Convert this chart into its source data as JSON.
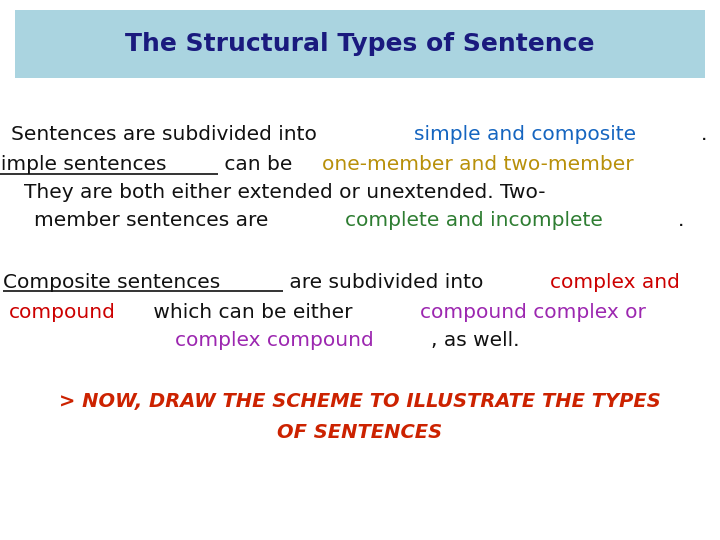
{
  "title": "The Structural Types of Sentence",
  "title_color": "#1a1a7e",
  "title_bg_color": "#aad4e0",
  "bg_color": "#ffffff",
  "fontsize": 14.5,
  "para3_color": "#cc2200",
  "para3_line1": "> NOW, DRAW THE SCHEME TO ILLUSTRATE THE TYPES",
  "para3_line2": "OF SENTENCES",
  "para1": [
    [
      {
        "text": "Sentences are subdivided into ",
        "color": "#111111",
        "underline": false
      },
      {
        "text": "simple and composite",
        "color": "#1565c0",
        "underline": false
      },
      {
        "text": ".",
        "color": "#111111",
        "underline": false
      }
    ],
    [
      {
        "text": "Simple sentences",
        "color": "#111111",
        "underline": true
      },
      {
        "text": " can be ",
        "color": "#111111",
        "underline": false
      },
      {
        "text": "one-member and two-member",
        "color": "#b8900a",
        "underline": false
      },
      {
        "text": ".",
        "color": "#111111",
        "underline": false
      }
    ],
    [
      {
        "text": "They are both either extended or unextended. Two-",
        "color": "#111111",
        "underline": false
      }
    ],
    [
      {
        "text": "member sentences are ",
        "color": "#111111",
        "underline": false
      },
      {
        "text": "complete and incomplete",
        "color": "#2e7d32",
        "underline": false
      },
      {
        "text": ".",
        "color": "#111111",
        "underline": false
      }
    ]
  ],
  "para2": [
    [
      {
        "text": "Composite sentences",
        "color": "#111111",
        "underline": true
      },
      {
        "text": " are subdivided into ",
        "color": "#111111",
        "underline": false
      },
      {
        "text": "complex and",
        "color": "#cc0000",
        "underline": false
      }
    ],
    [
      {
        "text": "compound",
        "color": "#cc0000",
        "underline": false
      },
      {
        "text": " which can be either ",
        "color": "#111111",
        "underline": false
      },
      {
        "text": "compound complex or",
        "color": "#9c27b0",
        "underline": false
      }
    ],
    [
      {
        "text": "complex compound",
        "color": "#9c27b0",
        "underline": false
      },
      {
        "text": ", as well.",
        "color": "#111111",
        "underline": false
      }
    ]
  ]
}
